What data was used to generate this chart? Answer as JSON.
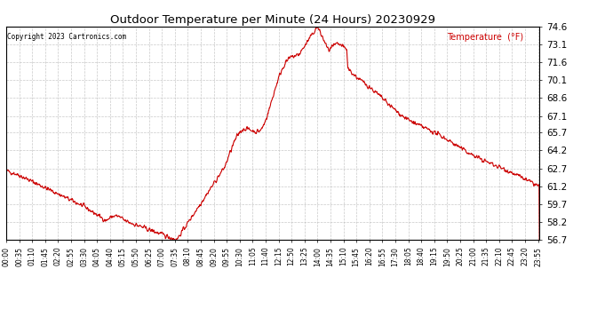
{
  "title": "Outdoor Temperature per Minute (24 Hours) 20230929",
  "copyright_text": "Copyright 2023 Cartronics.com",
  "legend_label": "Temperature  (°F)",
  "line_color": "#cc0000",
  "background_color": "#ffffff",
  "grid_color": "#bbbbbb",
  "ylim": [
    56.7,
    74.6
  ],
  "yticks": [
    56.7,
    58.2,
    59.7,
    61.2,
    62.7,
    64.2,
    65.7,
    67.1,
    68.6,
    70.1,
    71.6,
    73.1,
    74.6
  ],
  "total_minutes": 1440,
  "x_label_minutes": [
    0,
    35,
    70,
    105,
    140,
    175,
    210,
    245,
    280,
    315,
    350,
    385,
    420,
    455,
    490,
    525,
    560,
    595,
    630,
    665,
    700,
    735,
    770,
    805,
    840,
    875,
    910,
    945,
    980,
    1015,
    1050,
    1085,
    1120,
    1155,
    1190,
    1225,
    1260,
    1295,
    1330,
    1365,
    1400,
    1435
  ],
  "x_labels": [
    "00:00",
    "00:35",
    "01:10",
    "01:45",
    "02:20",
    "02:55",
    "03:30",
    "04:05",
    "04:40",
    "05:15",
    "05:50",
    "06:25",
    "07:00",
    "07:35",
    "08:10",
    "08:45",
    "09:20",
    "09:55",
    "10:30",
    "11:05",
    "11:40",
    "12:15",
    "12:50",
    "13:25",
    "14:00",
    "14:35",
    "15:10",
    "15:45",
    "16:20",
    "16:55",
    "17:30",
    "18:05",
    "18:40",
    "19:15",
    "19:50",
    "20:25",
    "21:00",
    "21:35",
    "22:10",
    "22:45",
    "23:20",
    "23:55"
  ]
}
